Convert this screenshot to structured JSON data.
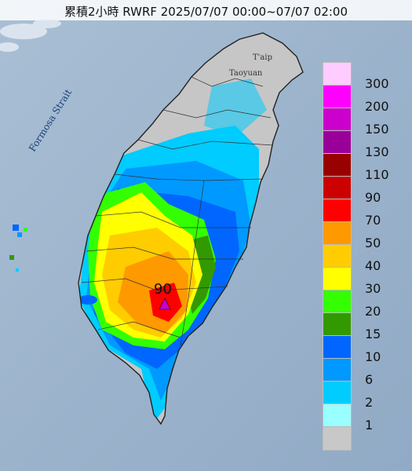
{
  "title": "累積2小時 RWRF 2025/07/07 00:00~07/07 02:00",
  "strait_label": "Formosa Strait",
  "cities": [
    {
      "name": "Taipei",
      "label": "T'aip"
    },
    {
      "name": "Taoyuan",
      "label": "Taoyuan"
    }
  ],
  "peak_value": "90",
  "colors": {
    "sea": "#9fb6cd",
    "land_bare": "#c8c8c8",
    "legend_border": "#bbbbbb"
  },
  "legend": [
    {
      "label": "300",
      "color": "#ffccff"
    },
    {
      "label": "200",
      "color": "#ff00ff"
    },
    {
      "label": "150",
      "color": "#cc00cc"
    },
    {
      "label": "130",
      "color": "#990099"
    },
    {
      "label": "110",
      "color": "#990000"
    },
    {
      "label": "90",
      "color": "#cc0000"
    },
    {
      "label": "70",
      "color": "#ff0000"
    },
    {
      "label": "50",
      "color": "#ff9900"
    },
    {
      "label": "40",
      "color": "#ffcc00"
    },
    {
      "label": "30",
      "color": "#ffff00"
    },
    {
      "label": "20",
      "color": "#33ff00"
    },
    {
      "label": "15",
      "color": "#339900"
    },
    {
      "label": "10",
      "color": "#0066ff"
    },
    {
      "label": "6",
      "color": "#0099ff"
    },
    {
      "label": "2",
      "color": "#00ccff"
    },
    {
      "label": "1",
      "color": "#99ffff"
    },
    {
      "label": "",
      "color": "#c8c8c8"
    }
  ]
}
